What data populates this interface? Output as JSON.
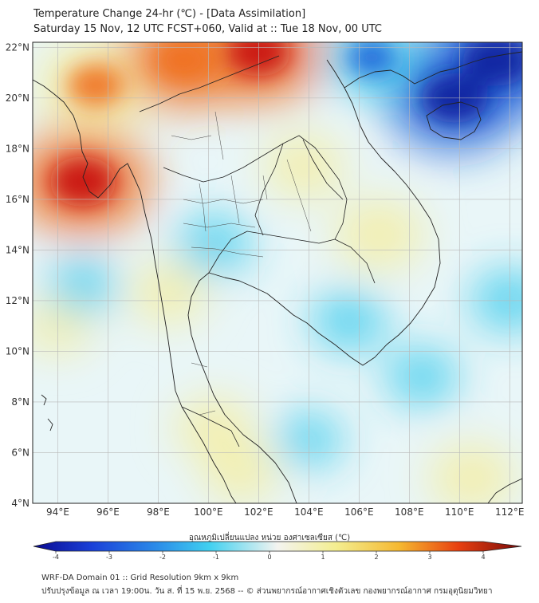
{
  "title": {
    "line1": "Temperature Change 24-hr (℃) - [Data Assimilation]",
    "line2": "Saturday 15 Nov, 12 UTC FCST+060, Valid at :: Tue 18 Nov, 00 UTC"
  },
  "map": {
    "lat_ticks": [
      {
        "value": 22,
        "label": "22°N"
      },
      {
        "value": 20,
        "label": "20°N"
      },
      {
        "value": 18,
        "label": "18°N"
      },
      {
        "value": 16,
        "label": "16°N"
      },
      {
        "value": 14,
        "label": "14°N"
      },
      {
        "value": 12,
        "label": "12°N"
      },
      {
        "value": 10,
        "label": "10°N"
      },
      {
        "value": 8,
        "label": "8°N"
      },
      {
        "value": 6,
        "label": "6°N"
      },
      {
        "value": 4,
        "label": "4°N"
      }
    ],
    "lon_ticks": [
      {
        "value": 94,
        "label": "94°E"
      },
      {
        "value": 96,
        "label": "96°E"
      },
      {
        "value": 98,
        "label": "98°E"
      },
      {
        "value": 100,
        "label": "100°E"
      },
      {
        "value": 102,
        "label": "102°E"
      },
      {
        "value": 104,
        "label": "104°E"
      },
      {
        "value": 106,
        "label": "106°E"
      },
      {
        "value": 108,
        "label": "108°E"
      },
      {
        "value": 110,
        "label": "110°E"
      },
      {
        "value": 112,
        "label": "112°E"
      }
    ],
    "lon_range": [
      93,
      112.5
    ],
    "lat_range": [
      4,
      22.2
    ],
    "anomalies": [
      {
        "lon": 95.5,
        "lat": 20.5,
        "value": 2.2
      },
      {
        "lon": 95.0,
        "lat": 16.7,
        "value": 3.0
      },
      {
        "lon": 99.0,
        "lat": 21.5,
        "value": 2.5
      },
      {
        "lon": 102.0,
        "lat": 21.8,
        "value": 2.8
      },
      {
        "lon": 103.8,
        "lat": 17.3,
        "value": 0.9
      },
      {
        "lon": 106.8,
        "lat": 14.6,
        "value": 1.2
      },
      {
        "lon": 110.5,
        "lat": 5.0,
        "value": 1.1
      },
      {
        "lon": 98.4,
        "lat": 12.3,
        "value": 0.8
      },
      {
        "lon": 100.2,
        "lat": 7.0,
        "value": 0.8
      },
      {
        "lon": 101.3,
        "lat": 5.2,
        "value": 0.7
      },
      {
        "lon": 94.0,
        "lat": 11.0,
        "value": 0.5
      },
      {
        "lon": 109.8,
        "lat": 20.0,
        "value": -3.0
      },
      {
        "lon": 111.5,
        "lat": 21.5,
        "value": -3.2
      },
      {
        "lon": 106.5,
        "lat": 21.6,
        "value": -1.5
      },
      {
        "lon": 100.2,
        "lat": 14.2,
        "value": -0.7
      },
      {
        "lon": 105.6,
        "lat": 11.2,
        "value": -0.7
      },
      {
        "lon": 95.0,
        "lat": 12.6,
        "value": -0.5
      },
      {
        "lon": 104.0,
        "lat": 6.5,
        "value": -0.4
      },
      {
        "lon": 112.0,
        "lat": 12.0,
        "value": -0.8
      },
      {
        "lon": 108.5,
        "lat": 9.0,
        "value": -0.6
      }
    ],
    "colors": {
      "deep_blue": "#08209c",
      "cyan": "#30c8ec",
      "white": "#f2f2ee",
      "yellow": "#f5ec9a",
      "orange": "#f07020",
      "red": "#c81010",
      "border": "#222222",
      "grid": "#b8b8b8"
    }
  },
  "legend": {
    "title": "อุณหภูมิเปลี่ยนแปลง หน่วย องศาเซลเซียส (℃)",
    "min": -4,
    "max": 4,
    "labels": [
      "-4",
      "-3",
      "-2",
      "-1",
      "0",
      "1",
      "2",
      "3",
      "4"
    ]
  },
  "footer": {
    "line1": "WRF-DA Domain 01 :: Grid Resolution 9km x 9km",
    "line2": "ปรับปรุงข้อมูล ณ เวลา 19:00น. วัน ส. ที่ 15 พ.ย. 2568 -- © ส่วนพยากรณ์อากาศเชิงตัวเลข กองพยากรณ์อากาศ กรมอุตุนิยมวิทยา"
  }
}
